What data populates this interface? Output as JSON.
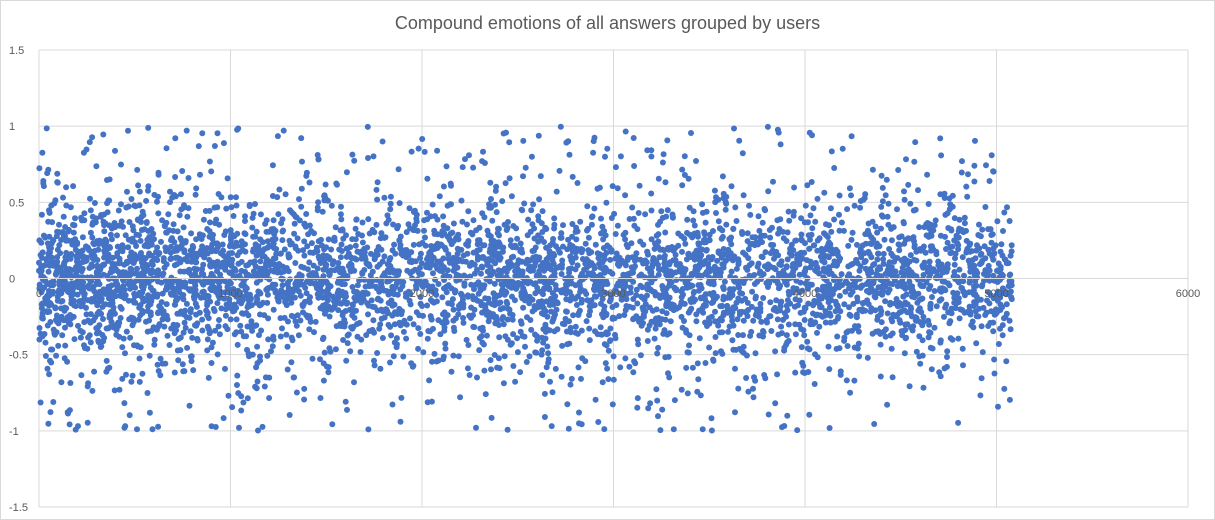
{
  "chart_data": {
    "type": "scatter",
    "title": "Compound emotions of all answers grouped by users",
    "xlabel": "",
    "ylabel": "",
    "xlim": [
      0,
      6000
    ],
    "ylim": [
      -1.5,
      1.5
    ],
    "x_ticks": [
      0,
      1000,
      2000,
      3000,
      4000,
      5000,
      6000
    ],
    "y_ticks": [
      -1.5,
      -1,
      -0.5,
      0,
      0.5,
      1,
      1.5
    ],
    "y_tick_labels": [
      "-1.5",
      "-1",
      "-0.5",
      "0",
      "0.5",
      "1",
      "1.5"
    ],
    "grid": true,
    "legend": "none",
    "marker_color": "#4472C4",
    "series": [
      {
        "x_range": [
          0,
          5080
        ],
        "approx_point_count": 5000,
        "value_range": [
          -1,
          1
        ],
        "distribution": "dense cluster near 0 within about -0.5 to 0.5, spread thinning toward ±1; densest at low x (0–1000)"
      }
    ]
  }
}
